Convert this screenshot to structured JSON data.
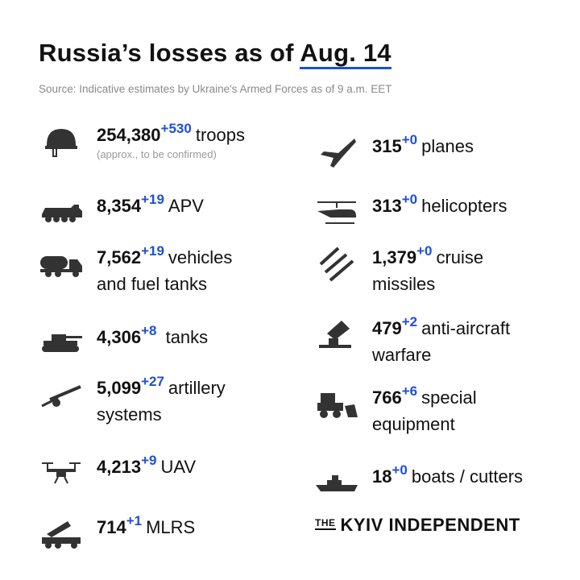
{
  "header": {
    "title_main": "Russia’s losses",
    "title_mid": " as of ",
    "title_date": "Aug. 14",
    "source": "Source: Indicative estimates by Ukraine's Armed Forces as of 9 a.m. EET"
  },
  "colors": {
    "accent": "#1f4fd6",
    "text": "#111111",
    "muted": "#8a8a8a"
  },
  "left_items": [
    {
      "icon": "helmet-icon",
      "value": "254,380",
      "delta": "+530",
      "label": "troops",
      "note": "(approx., to be confirmed)"
    },
    {
      "icon": "apv-icon",
      "value": "8,354",
      "delta": "+19",
      "label": "APV"
    },
    {
      "icon": "truck-icon",
      "value": "7,562",
      "delta": "+19",
      "label": "vehicles",
      "label2": "and fuel tanks"
    },
    {
      "icon": "tank-icon",
      "value": "4,306",
      "delta": "+8",
      "label": "tanks"
    },
    {
      "icon": "artillery-icon",
      "value": "5,099",
      "delta": "+27",
      "label": "artillery",
      "label2": "systems"
    },
    {
      "icon": "drone-icon",
      "value": "4,213",
      "delta": "+9",
      "label": "UAV"
    },
    {
      "icon": "mlrs-icon",
      "value": "714",
      "delta": "+1",
      "label": "MLRS"
    }
  ],
  "right_items": [
    {
      "icon": "plane-icon",
      "value": "315",
      "delta": "+0",
      "label": "planes"
    },
    {
      "icon": "helicopter-icon",
      "value": "313",
      "delta": "+0",
      "label": "helicopters"
    },
    {
      "icon": "missile-icon",
      "value": "1,379",
      "delta": "+0",
      "label": "cruise",
      "label2": "missiles"
    },
    {
      "icon": "anti-aircraft-icon",
      "value": "479",
      "delta": "+2",
      "label": "anti-aircraft",
      "label2": "warfare"
    },
    {
      "icon": "bulldozer-icon",
      "value": "766",
      "delta": "+6",
      "label": "special",
      "label2": "equipment"
    },
    {
      "icon": "boat-icon",
      "value": "18",
      "delta": "+0",
      "label": "boats / cutters"
    }
  ],
  "logo": {
    "the": "THE",
    "name": "KYIV INDEPENDENT"
  }
}
